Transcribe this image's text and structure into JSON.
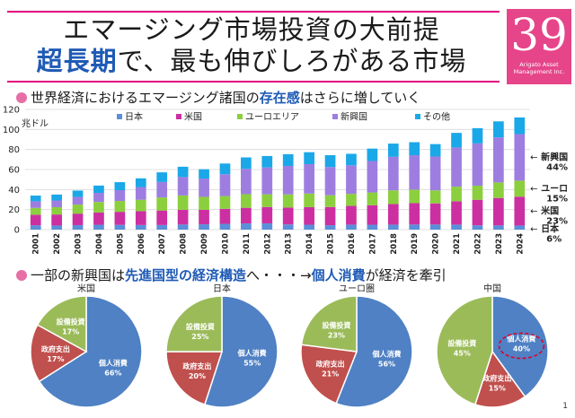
{
  "title": {
    "line1": "エマージング市場投資の大前提",
    "line2_highlight": "超長期",
    "line2_rest": "で、最も伸びしろがある市場"
  },
  "badge": {
    "number": "39",
    "company_line1": "Arigato Asset",
    "company_line2": "Management Inc."
  },
  "section1": {
    "prefix": "世界経済におけるエマージング諸国の",
    "highlight": "存在感",
    "suffix": "はさらに増していく"
  },
  "section2": {
    "prefix": "一部の新興国は",
    "highlight1": "先進国型の経済構造",
    "middle": "へ・・・→",
    "highlight2": "個人消費",
    "suffix": "が経済を牽引"
  },
  "page_number": "1",
  "colors": {
    "japan": "#5b8fd9",
    "us": "#cc2fa2",
    "euro": "#8ccf3e",
    "emerging": "#9d7ee0",
    "other": "#1aa8e8",
    "pie_consumption": "#4f81c4",
    "pie_government": "#c0504d",
    "pie_investment": "#9bbb59",
    "accent": "#e3007f"
  },
  "chart_data": [
    {
      "type": "bar",
      "stacked": true,
      "ylabel": "兆ドル",
      "ylim": [
        0,
        120
      ],
      "yticks": [
        0,
        20,
        40,
        60,
        80,
        100,
        120
      ],
      "grid": true,
      "legend_position": "top",
      "categories": [
        "2001",
        "2002",
        "2003",
        "2004",
        "2005",
        "2006",
        "2007",
        "2008",
        "2009",
        "2010",
        "2011",
        "2012",
        "2013",
        "2014",
        "2015",
        "2016",
        "2017",
        "2018",
        "2019",
        "2020",
        "2021",
        "2022",
        "2023",
        "2024"
      ],
      "series": [
        {
          "name": "日本",
          "color_key": "japan",
          "values": [
            4.3,
            4.1,
            4.5,
            4.9,
            4.8,
            4.6,
            4.6,
            5.1,
            5.3,
            5.8,
            6.2,
            6.3,
            5.2,
            4.9,
            4.4,
            5.0,
            4.9,
            5.0,
            5.1,
            5.1,
            5.0,
            4.3,
            4.2,
            4.1
          ]
        },
        {
          "name": "米国",
          "color_key": "us",
          "values": [
            10.6,
            11.0,
            11.5,
            12.3,
            13.0,
            13.8,
            14.5,
            14.7,
            14.5,
            15.0,
            15.6,
            16.3,
            16.8,
            17.5,
            18.2,
            18.7,
            19.5,
            20.5,
            21.4,
            21.1,
            23.3,
            25.5,
            27.4,
            28.8
          ]
        },
        {
          "name": "ユーロエリア",
          "color_key": "euro",
          "values": [
            6.8,
            7.3,
            9.0,
            10.4,
            10.8,
            11.4,
            13.0,
            14.3,
            12.9,
            12.7,
            13.6,
            12.7,
            13.2,
            13.6,
            11.7,
            12.0,
            12.7,
            13.7,
            13.4,
            13.0,
            14.6,
            14.1,
            15.5,
            16.0
          ]
        },
        {
          "name": "新興国",
          "color_key": "emerging",
          "values": [
            6.6,
            6.7,
            7.6,
            9.1,
            10.8,
            12.7,
            15.5,
            18.4,
            18.3,
            21.8,
            25.3,
            26.8,
            28.4,
            29.4,
            28.2,
            28.5,
            31.4,
            33.5,
            34.4,
            33.8,
            39.1,
            42.2,
            45.0,
            46.5
          ]
        },
        {
          "name": "その他",
          "color_key": "other",
          "values": [
            5.7,
            5.9,
            6.4,
            7.3,
            8.0,
            8.7,
            9.6,
            10.3,
            9.3,
            10.7,
            11.4,
            11.4,
            11.7,
            11.9,
            11.8,
            11.5,
            12.4,
            13.2,
            13.0,
            12.4,
            14.6,
            15.2,
            16.0,
            16.6
          ]
        }
      ],
      "annotations": [
        {
          "name": "新興国",
          "percent": "44%",
          "series": "新興国"
        },
        {
          "name": "ユーロ",
          "percent": "15%",
          "series": "ユーロエリア"
        },
        {
          "name": "米国",
          "percent": "23%",
          "series": "米国"
        },
        {
          "name": "日本",
          "percent": "6%",
          "series": "日本"
        }
      ]
    },
    {
      "type": "pie",
      "title": "米国",
      "slices": [
        {
          "label": "個人消費",
          "value": 66,
          "color_key": "pie_consumption"
        },
        {
          "label": "政府支出",
          "value": 17,
          "color_key": "pie_government"
        },
        {
          "label": "設備投資",
          "value": 17,
          "color_key": "pie_investment"
        }
      ]
    },
    {
      "type": "pie",
      "title": "日本",
      "slices": [
        {
          "label": "個人消費",
          "value": 55,
          "color_key": "pie_consumption"
        },
        {
          "label": "政府支出",
          "value": 20,
          "color_key": "pie_government"
        },
        {
          "label": "設備投資",
          "value": 25,
          "color_key": "pie_investment"
        }
      ]
    },
    {
      "type": "pie",
      "title": "ユーロ圏",
      "slices": [
        {
          "label": "個人消費",
          "value": 56,
          "color_key": "pie_consumption"
        },
        {
          "label": "政府支出",
          "value": 21,
          "color_key": "pie_government"
        },
        {
          "label": "設備投資",
          "value": 23,
          "color_key": "pie_investment"
        }
      ]
    },
    {
      "type": "pie",
      "title": "中国",
      "highlight": "個人消費",
      "slices": [
        {
          "label": "個人消費",
          "value": 40,
          "color_key": "pie_consumption"
        },
        {
          "label": "政府支出",
          "value": 15,
          "color_key": "pie_government"
        },
        {
          "label": "設備投資",
          "value": 45,
          "color_key": "pie_investment"
        }
      ]
    }
  ]
}
